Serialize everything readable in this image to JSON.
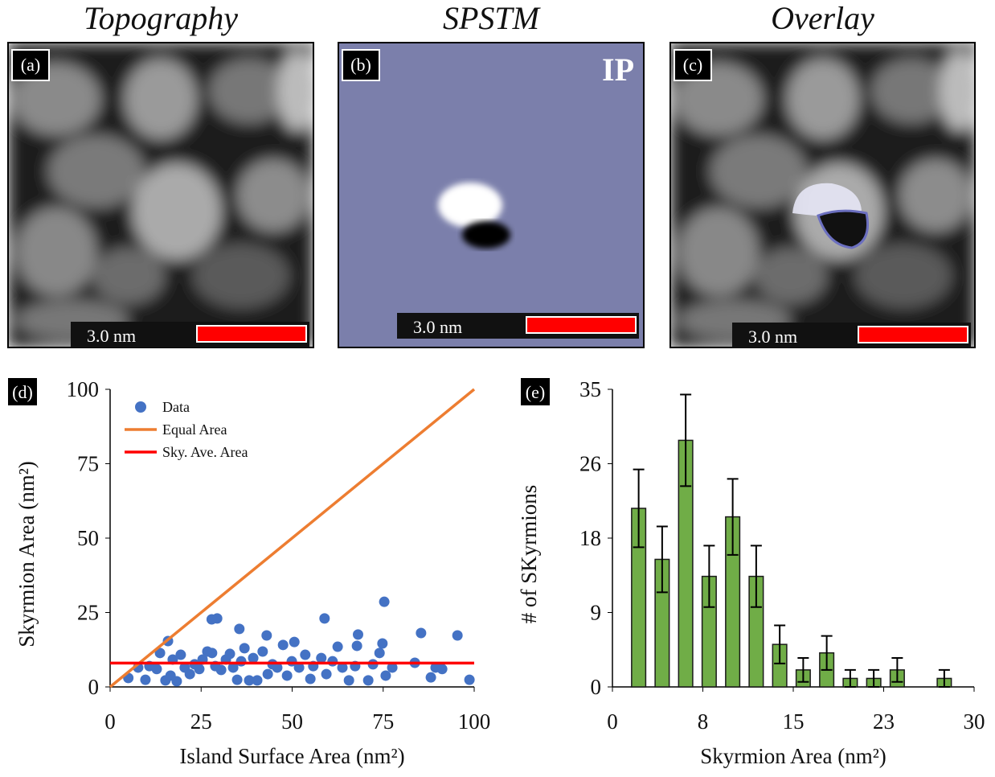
{
  "panels": [
    {
      "title": "Topography",
      "label": "(a)",
      "scale": "3.0  nm"
    },
    {
      "title": "SPSTM",
      "label": "(b)",
      "scale": "3.0  nm",
      "tag": "IP"
    },
    {
      "title": "Overlay",
      "label": "(c)",
      "scale": "3.0  nm"
    }
  ],
  "chart_data": [
    {
      "type": "scatter",
      "label": "(d)",
      "x_label": "Island Surface Area (nm²)",
      "y_label": "Skyrmion Area (nm²)",
      "xlim": [
        0,
        100
      ],
      "ylim": [
        0,
        100
      ],
      "xticks": [
        0,
        25,
        50,
        75,
        100
      ],
      "yticks": [
        0,
        25,
        50,
        75,
        100
      ],
      "legend": "upper left",
      "grid": false,
      "series": [
        {
          "name": "Data",
          "color": "#4472c4",
          "kind": "points",
          "x": [
            15.9,
            27.9,
            29.4,
            35.5,
            43,
            58.9,
            68.1,
            75.3,
            85.4,
            95.4,
            98.7,
            5,
            7.7,
            9.7,
            10.8,
            12.8,
            13.7,
            15.2,
            16.6,
            17.2,
            18.3,
            19.4,
            20.5,
            21.9,
            23.2,
            24.5,
            25.4,
            26.7,
            28,
            28.9,
            30.5,
            31.8,
            32.9,
            33.8,
            34.9,
            36,
            36.9,
            38.2,
            39.3,
            40.4,
            41.9,
            43.3,
            44.6,
            45.9,
            47.5,
            48.6,
            49.9,
            50.6,
            51.9,
            53.6,
            55,
            55.8,
            58,
            59.4,
            61.1,
            62.5,
            63.8,
            65.6,
            67.3,
            67.8,
            70.9,
            72.2,
            74,
            74.8,
            75.7,
            77.5,
            83.7,
            88.1,
            89.4,
            91.2
          ],
          "values": [
            15.4,
            22.7,
            23,
            19.5,
            17.3,
            23,
            17.6,
            28.6,
            18.1,
            17.3,
            2.4,
            3,
            6.5,
            2.4,
            7,
            6,
            11.4,
            2.2,
            3.8,
            9.2,
            1.9,
            10.8,
            6.5,
            4.3,
            7.6,
            6,
            9.2,
            11.9,
            11.4,
            7,
            5.7,
            9.2,
            11.1,
            6.5,
            2.4,
            8.6,
            13,
            2.2,
            9.7,
            2.2,
            11.9,
            4.3,
            7.6,
            6.5,
            14.1,
            3.8,
            8.6,
            15.1,
            6.5,
            10.8,
            2.7,
            7,
            9.7,
            4.3,
            8.6,
            13.5,
            6.5,
            2.2,
            7,
            13.8,
            2.2,
            7.6,
            11.4,
            14.6,
            3.8,
            6.5,
            8.1,
            3.2,
            6.5,
            6
          ]
        },
        {
          "name": "Equal Area",
          "color": "#ed7d31",
          "kind": "line",
          "x": [
            0,
            100
          ],
          "values": [
            0,
            100
          ]
        },
        {
          "name": "Sky. Ave. Area",
          "color": "#ff0000",
          "kind": "line",
          "x": [
            0,
            100
          ],
          "values": [
            8,
            8
          ]
        }
      ]
    },
    {
      "type": "histogram",
      "label": "(e)",
      "x_label": "Skyrmion Area (nm²)",
      "y_label": "# of SKyrmions",
      "xlim": [
        0,
        30
      ],
      "ylim": [
        0,
        35
      ],
      "xticks": [
        0,
        {
          "value": 7.5,
          "label": "8"
        },
        15,
        {
          "value": 22.5,
          "label": "23"
        },
        30
      ],
      "yticks": [
        0,
        {
          "value": 8.75,
          "label": "9"
        },
        {
          "value": 17.5,
          "label": "18"
        },
        {
          "value": 26.25,
          "label": "26"
        },
        35
      ],
      "color": "#70ad47",
      "bins": [
        1.2,
        3.15,
        5.1,
        7.05,
        9.0,
        10.95,
        12.9,
        14.85,
        16.8,
        18.75,
        20.7,
        22.65,
        24.6,
        26.55,
        28.5
      ],
      "values": [
        21,
        15,
        29,
        13,
        20,
        13,
        5,
        2,
        4,
        1,
        1,
        2,
        0,
        1
      ],
      "errors": [
        4.58,
        3.87,
        5.39,
        3.61,
        4.47,
        3.61,
        2.24,
        1.41,
        2,
        1,
        1,
        1.41,
        null,
        1
      ]
    }
  ]
}
